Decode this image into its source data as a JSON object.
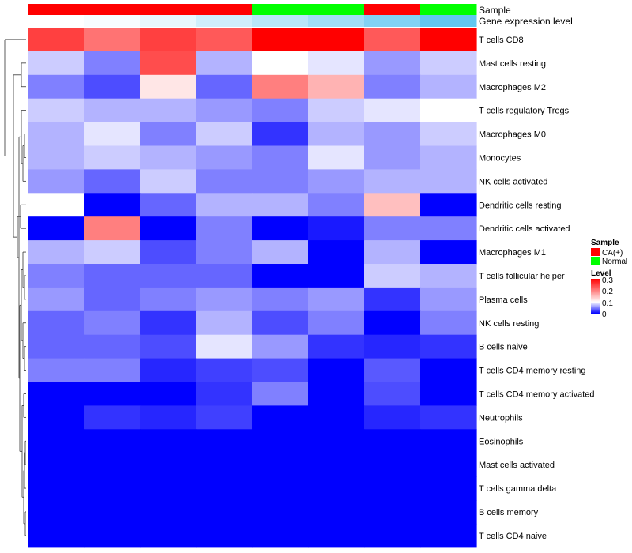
{
  "chart_data": {
    "type": "heatmap",
    "annotation_rows": [
      {
        "name": "Sample",
        "values": [
          "CA(+)",
          "CA(+)",
          "CA(+)",
          "CA(+)",
          "Normal",
          "Normal",
          "CA(+)",
          "Normal"
        ]
      },
      {
        "name": "Gene expression level",
        "values": [
          0.0,
          0.05,
          0.15,
          0.3,
          0.45,
          0.6,
          0.8,
          1.0
        ]
      }
    ],
    "rows": [
      "T cells CD8",
      "Mast cells resting",
      "Macrophages M2",
      "T cells regulatory  Tregs",
      "Macrophages M0",
      "Monocytes",
      "NK cells activated",
      "Dendritic cells resting",
      "Dendritic cells activated",
      "Macrophages M1",
      "T cells follicular helper",
      "Plasma cells",
      "NK cells resting",
      "B cells naive",
      "T cells CD4 memory resting",
      "T cells CD4 memory activated",
      "Neutrophils",
      "Eosinophils",
      "Mast cells activated",
      "T cells gamma delta",
      "B cells memory",
      "T cells CD4 naive"
    ],
    "values": [
      [
        0.25,
        0.21,
        0.25,
        0.23,
        0.3,
        0.3,
        0.23,
        0.3
      ],
      [
        0.08,
        0.05,
        0.24,
        0.07,
        0.1,
        0.09,
        0.06,
        0.08
      ],
      [
        0.05,
        0.03,
        0.12,
        0.04,
        0.2,
        0.16,
        0.05,
        0.07
      ],
      [
        0.08,
        0.07,
        0.07,
        0.06,
        0.05,
        0.08,
        0.09,
        0.1
      ],
      [
        0.07,
        0.09,
        0.05,
        0.08,
        0.02,
        0.07,
        0.06,
        0.08
      ],
      [
        0.07,
        0.08,
        0.07,
        0.06,
        0.05,
        0.09,
        0.06,
        0.07
      ],
      [
        0.06,
        0.04,
        0.08,
        0.05,
        0.05,
        0.06,
        0.07,
        0.07
      ],
      [
        0.1,
        0.0,
        0.04,
        0.07,
        0.07,
        0.05,
        0.15,
        0.0
      ],
      [
        0.0,
        0.2,
        0.0,
        0.05,
        0.0,
        0.01,
        0.05,
        0.05
      ],
      [
        0.07,
        0.08,
        0.03,
        0.05,
        0.07,
        0.0,
        0.07,
        0.0
      ],
      [
        0.05,
        0.04,
        0.04,
        0.04,
        0.0,
        0.0,
        0.08,
        0.07
      ],
      [
        0.06,
        0.04,
        0.05,
        0.06,
        0.05,
        0.06,
        0.02,
        0.06
      ],
      [
        0.04,
        0.05,
        0.02,
        0.07,
        0.03,
        0.05,
        0.0,
        0.05
      ],
      [
        0.04,
        0.04,
        0.03,
        0.09,
        0.06,
        0.02,
        0.015,
        0.02
      ],
      [
        0.05,
        0.05,
        0.015,
        0.025,
        0.03,
        0.0,
        0.035,
        0.0
      ],
      [
        0.0,
        0.0,
        0.0,
        0.02,
        0.05,
        0.0,
        0.03,
        0.0
      ],
      [
        0.0,
        0.02,
        0.015,
        0.025,
        0.0,
        0.0,
        0.015,
        0.02
      ],
      [
        0.0,
        0.0,
        0.0,
        0.0,
        0.0,
        0.0,
        0.0,
        0.0
      ],
      [
        0.0,
        0.0,
        0.0,
        0.0,
        0.0,
        0.0,
        0.0,
        0.0
      ],
      [
        0.0,
        0.0,
        0.0,
        0.0,
        0.0,
        0.0,
        0.0,
        0.0
      ],
      [
        0.0,
        0.0,
        0.0,
        0.0,
        0.0,
        0.0,
        0.0,
        0.0
      ],
      [
        0.0,
        0.0,
        0.0,
        0.0,
        0.0,
        0.0,
        0.0,
        0.0
      ]
    ],
    "color_scale": {
      "min": 0,
      "mid": 0.1,
      "max": 0.3,
      "low": "#0000ff",
      "mid_color": "#ffffff",
      "high": "#ff0000"
    },
    "legend": {
      "sample_title": "Sample",
      "sample_entries": [
        {
          "label": "CA(+)",
          "color": "#ff0000"
        },
        {
          "label": "Normal",
          "color": "#00ff00"
        }
      ],
      "level_title": "Level",
      "level_ticks": [
        "0.3",
        "0.2",
        "0.1",
        "0"
      ],
      "placement": "right"
    },
    "gene_expression_colors": {
      "low": "#ffffff",
      "high": "#63c7f0"
    }
  }
}
